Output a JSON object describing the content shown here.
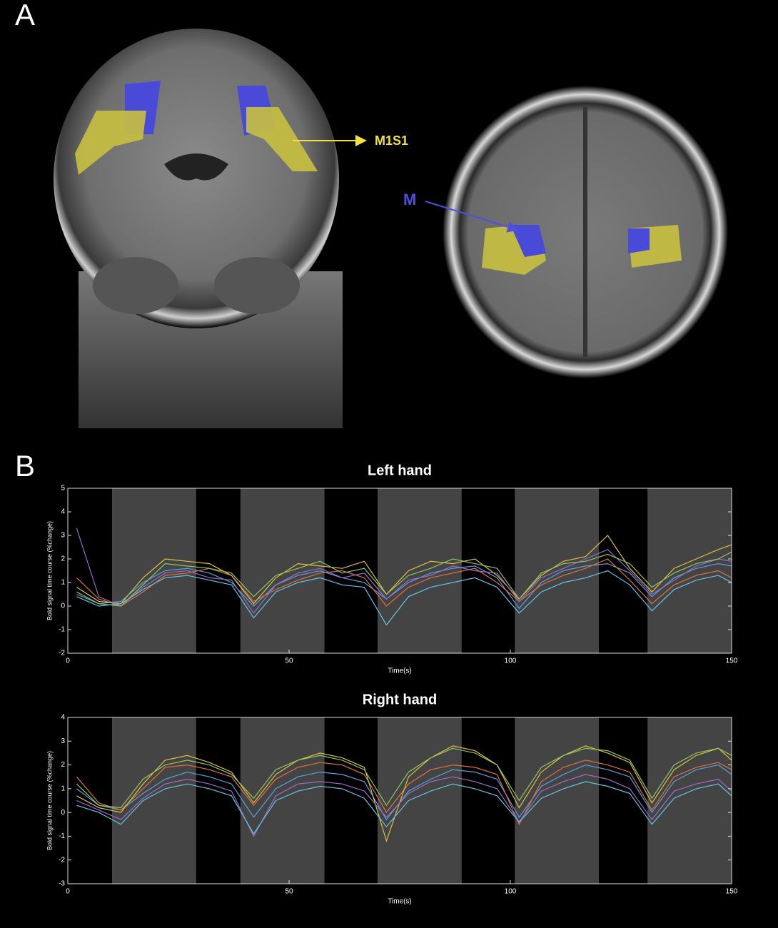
{
  "panel_a": {
    "label": "A",
    "annotations": [
      "M1S1",
      "M"
    ]
  },
  "panel_b": {
    "label": "B"
  },
  "chart_data": [
    {
      "type": "line",
      "title": "Left hand",
      "x_label": "Time(s)",
      "y_label": "Bold signal time course (%change)",
      "xlim": [
        0,
        150
      ],
      "xticks": [
        0,
        50,
        100,
        150
      ],
      "ylim": [
        -2,
        5
      ],
      "yticks": [
        -2,
        -1,
        0,
        1,
        2,
        3,
        4,
        5
      ],
      "task_blocks": [
        [
          10,
          29
        ],
        [
          39,
          58
        ],
        [
          70,
          89
        ],
        [
          101,
          120
        ],
        [
          131,
          150
        ]
      ],
      "x": [
        2,
        7,
        12,
        17,
        22,
        27,
        32,
        37,
        42,
        47,
        52,
        57,
        62,
        67,
        72,
        77,
        82,
        87,
        92,
        97,
        102,
        107,
        112,
        117,
        122,
        127,
        132,
        137,
        142,
        147,
        150
      ],
      "series": [
        {
          "color": "#5aa0e0",
          "values": [
            0.5,
            0.1,
            0.2,
            1.0,
            1.5,
            1.6,
            1.4,
            1.0,
            0.0,
            0.9,
            1.3,
            1.5,
            1.2,
            1.0,
            0.3,
            1.0,
            1.4,
            1.6,
            1.7,
            1.2,
            -0.1,
            1.0,
            1.5,
            1.7,
            1.8,
            1.4,
            0.4,
            1.2,
            1.6,
            1.8,
            1.7
          ]
        },
        {
          "color": "#e07040",
          "values": [
            1.2,
            0.3,
            0.0,
            0.6,
            1.3,
            1.4,
            1.6,
            1.3,
            0.2,
            0.7,
            1.1,
            1.4,
            1.5,
            1.2,
            0.0,
            0.8,
            1.2,
            1.4,
            1.6,
            1.0,
            0.2,
            0.9,
            1.3,
            1.6,
            2.0,
            1.1,
            0.1,
            0.9,
            1.3,
            1.5,
            1.2
          ]
        },
        {
          "color": "#e0c040",
          "values": [
            0.8,
            0.2,
            0.1,
            1.2,
            2.0,
            1.9,
            1.8,
            1.3,
            0.1,
            1.2,
            1.8,
            1.7,
            1.6,
            1.9,
            0.5,
            1.5,
            1.9,
            1.8,
            2.0,
            1.3,
            0.3,
            1.3,
            1.9,
            2.1,
            3.0,
            1.6,
            0.6,
            1.6,
            2.0,
            2.4,
            2.6
          ]
        },
        {
          "color": "#9a6cc8",
          "values": [
            3.3,
            0.4,
            0.0,
            0.8,
            1.4,
            1.5,
            1.2,
            1.1,
            -0.3,
            0.9,
            1.4,
            1.6,
            1.2,
            1.4,
            0.3,
            1.1,
            1.3,
            1.7,
            1.5,
            1.4,
            0.2,
            1.2,
            1.6,
            2.0,
            2.4,
            1.5,
            0.5,
            1.1,
            1.7,
            2.0,
            1.9
          ]
        },
        {
          "color": "#8cc860",
          "values": [
            0.6,
            0.1,
            0.0,
            0.9,
            1.8,
            1.7,
            1.6,
            1.4,
            0.4,
            1.3,
            1.6,
            1.9,
            1.4,
            1.6,
            0.5,
            1.3,
            1.6,
            2.0,
            1.8,
            1.6,
            0.3,
            1.4,
            1.8,
            1.9,
            2.2,
            1.8,
            0.8,
            1.4,
            1.8,
            2.0,
            2.3
          ]
        },
        {
          "color": "#62c4e6",
          "values": [
            0.4,
            0.0,
            0.1,
            0.7,
            1.2,
            1.3,
            1.1,
            0.9,
            -0.5,
            0.6,
            1.0,
            1.2,
            0.9,
            0.8,
            -0.8,
            0.4,
            0.8,
            1.0,
            1.2,
            0.8,
            -0.3,
            0.6,
            1.0,
            1.2,
            1.5,
            0.9,
            -0.2,
            0.7,
            1.1,
            1.3,
            1.0
          ]
        }
      ]
    },
    {
      "type": "line",
      "title": "Right hand",
      "x_label": "Time(s)",
      "y_label": "Bold signal time course (%change)",
      "xlim": [
        0,
        150
      ],
      "xticks": [
        0,
        50,
        100,
        150
      ],
      "ylim": [
        -3,
        4
      ],
      "yticks": [
        -3,
        -2,
        -1,
        0,
        1,
        2,
        3,
        4
      ],
      "task_blocks": [
        [
          10,
          29
        ],
        [
          39,
          58
        ],
        [
          70,
          89
        ],
        [
          101,
          120
        ],
        [
          131,
          150
        ]
      ],
      "x": [
        2,
        7,
        12,
        17,
        22,
        27,
        32,
        37,
        42,
        47,
        52,
        57,
        62,
        67,
        72,
        77,
        82,
        87,
        92,
        97,
        102,
        107,
        112,
        117,
        122,
        127,
        132,
        137,
        142,
        147,
        150
      ],
      "series": [
        {
          "color": "#5aa0e0",
          "values": [
            1.0,
            0.3,
            0.1,
            0.8,
            1.4,
            1.7,
            1.5,
            1.2,
            -0.2,
            1.0,
            1.5,
            1.7,
            1.6,
            1.3,
            -0.3,
            0.9,
            1.4,
            1.8,
            1.7,
            1.4,
            -0.2,
            1.1,
            1.6,
            2.0,
            1.8,
            1.5,
            0.0,
            1.3,
            1.8,
            2.0,
            1.6
          ]
        },
        {
          "color": "#e07040",
          "values": [
            1.5,
            0.4,
            0.1,
            1.0,
            1.9,
            2.0,
            1.8,
            1.5,
            0.3,
            1.4,
            1.9,
            2.1,
            2.0,
            1.6,
            0.0,
            1.2,
            1.8,
            2.0,
            1.9,
            1.6,
            -0.5,
            1.3,
            1.9,
            2.2,
            2.0,
            1.7,
            0.1,
            1.5,
            1.9,
            2.1,
            1.8
          ]
        },
        {
          "color": "#e0c040",
          "values": [
            0.7,
            0.2,
            0.0,
            1.2,
            2.2,
            2.4,
            2.1,
            1.7,
            0.4,
            1.6,
            2.2,
            2.5,
            2.3,
            1.9,
            -1.2,
            1.5,
            2.3,
            2.8,
            2.6,
            2.0,
            0.2,
            1.7,
            2.4,
            2.8,
            2.5,
            2.1,
            0.4,
            1.8,
            2.4,
            2.7,
            2.2
          ]
        },
        {
          "color": "#9a6cc8",
          "values": [
            0.5,
            0.1,
            -0.3,
            0.6,
            1.2,
            1.4,
            1.2,
            0.9,
            -1.0,
            0.7,
            1.2,
            1.3,
            1.2,
            0.9,
            -0.2,
            0.8,
            1.3,
            1.5,
            1.3,
            1.0,
            -0.4,
            0.9,
            1.3,
            1.6,
            1.4,
            1.0,
            -0.3,
            0.9,
            1.2,
            1.4,
            0.9
          ]
        },
        {
          "color": "#8cc860",
          "values": [
            1.2,
            0.3,
            0.2,
            1.4,
            2.0,
            2.2,
            2.0,
            1.6,
            0.6,
            1.8,
            2.2,
            2.4,
            2.2,
            1.8,
            0.3,
            1.7,
            2.3,
            2.7,
            2.5,
            2.0,
            0.5,
            1.9,
            2.4,
            2.7,
            2.6,
            2.2,
            0.6,
            2.0,
            2.5,
            2.7,
            2.4
          ]
        },
        {
          "color": "#62c4e6",
          "values": [
            0.3,
            0.0,
            -0.5,
            0.5,
            1.0,
            1.2,
            1.0,
            0.7,
            -0.9,
            0.5,
            0.9,
            1.1,
            1.0,
            0.6,
            -0.6,
            0.5,
            0.9,
            1.2,
            1.0,
            0.7,
            -0.4,
            0.6,
            1.0,
            1.3,
            1.1,
            0.8,
            -0.5,
            0.6,
            1.0,
            1.2,
            0.7
          ]
        }
      ]
    }
  ]
}
